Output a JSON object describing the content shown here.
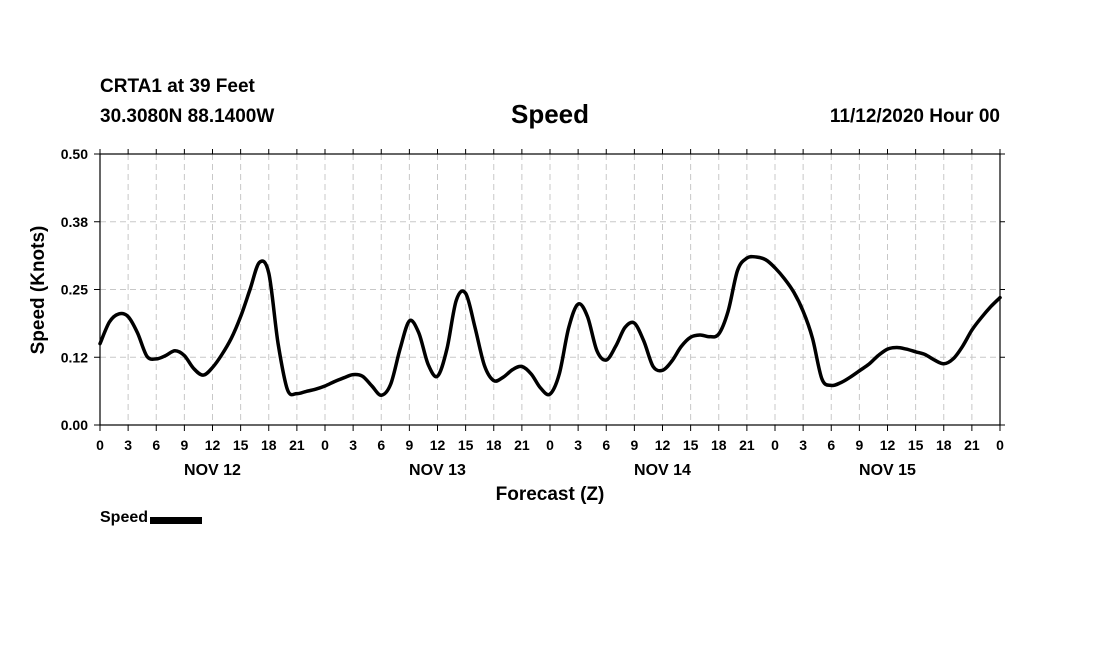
{
  "header": {
    "station": "CRTA1 at 39 Feet",
    "coords": "30.3080N 88.1400W",
    "title": "Speed",
    "datetime": "11/12/2020 Hour 00"
  },
  "chart_data": {
    "type": "line",
    "title": "Speed",
    "xlabel": "Forecast (Z)",
    "ylabel": "Speed (Knots)",
    "ylim": [
      0,
      0.5
    ],
    "xlim": [
      0,
      96
    ],
    "yticks": [
      "0.00",
      "0.12",
      "0.25",
      "0.38",
      "0.50"
    ],
    "ytick_values": [
      0,
      0.125,
      0.25,
      0.375,
      0.5
    ],
    "xtick_labels": [
      "0",
      "3",
      "6",
      "9",
      "12",
      "15",
      "18",
      "21",
      "0",
      "3",
      "6",
      "9",
      "12",
      "15",
      "18",
      "21",
      "0",
      "3",
      "6",
      "9",
      "12",
      "15",
      "18",
      "21",
      "0",
      "3",
      "6",
      "9",
      "12",
      "15",
      "18",
      "21",
      "0"
    ],
    "day_labels": [
      {
        "label": "NOV 12",
        "x": 12
      },
      {
        "label": "NOV 13",
        "x": 36
      },
      {
        "label": "NOV 14",
        "x": 60
      },
      {
        "label": "NOV 15",
        "x": 84
      }
    ],
    "grid": true,
    "series": [
      {
        "name": "Speed",
        "x": [
          0,
          1,
          2,
          3,
          4,
          5,
          6,
          7,
          8,
          9,
          10,
          11,
          12,
          13,
          14,
          15,
          16,
          17,
          18,
          19,
          20,
          21,
          22,
          23,
          24,
          25,
          26,
          27,
          28,
          29,
          30,
          31,
          32,
          33,
          34,
          35,
          36,
          37,
          38,
          39,
          40,
          41,
          42,
          43,
          44,
          45,
          46,
          47,
          48,
          49,
          50,
          51,
          52,
          53,
          54,
          55,
          56,
          57,
          58,
          59,
          60,
          61,
          62,
          63,
          64,
          65,
          66,
          67,
          68,
          69,
          70,
          71,
          72,
          73,
          74,
          75,
          76,
          77,
          78,
          79,
          80,
          81,
          82,
          83,
          84,
          85,
          86,
          87,
          88,
          89,
          90,
          91,
          92,
          93,
          94,
          95,
          96
        ],
        "values": [
          0.15,
          0.19,
          0.205,
          0.2,
          0.17,
          0.127,
          0.122,
          0.128,
          0.137,
          0.128,
          0.104,
          0.092,
          0.106,
          0.13,
          0.16,
          0.2,
          0.25,
          0.3,
          0.28,
          0.15,
          0.065,
          0.058,
          0.062,
          0.066,
          0.072,
          0.08,
          0.087,
          0.093,
          0.09,
          0.072,
          0.055,
          0.075,
          0.14,
          0.192,
          0.17,
          0.112,
          0.09,
          0.14,
          0.23,
          0.243,
          0.18,
          0.11,
          0.082,
          0.088,
          0.102,
          0.108,
          0.094,
          0.068,
          0.057,
          0.095,
          0.18,
          0.223,
          0.2,
          0.137,
          0.12,
          0.145,
          0.18,
          0.188,
          0.155,
          0.108,
          0.101,
          0.118,
          0.145,
          0.162,
          0.166,
          0.163,
          0.168,
          0.21,
          0.285,
          0.308,
          0.31,
          0.305,
          0.29,
          0.27,
          0.245,
          0.21,
          0.16,
          0.085,
          0.073,
          0.078,
          0.088,
          0.1,
          0.112,
          0.128,
          0.14,
          0.143,
          0.14,
          0.135,
          0.13,
          0.12,
          0.113,
          0.122,
          0.145,
          0.175,
          0.198,
          0.218,
          0.235
        ]
      }
    ]
  },
  "legend": {
    "label": "Speed"
  }
}
